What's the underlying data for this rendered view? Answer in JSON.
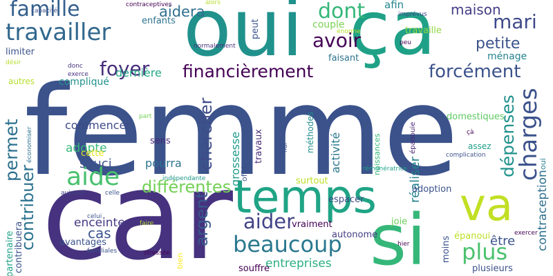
{
  "words": [
    {
      "text": "femme",
      "color": "#3b528b"
    },
    {
      "text": "car",
      "color": "#46327e"
    },
    {
      "text": "oui",
      "color": "#21918c"
    },
    {
      "text": "ça",
      "color": "#1fa187"
    },
    {
      "text": "temps",
      "color": "#20a486"
    },
    {
      "text": "si",
      "color": "#35b779"
    },
    {
      "text": "va",
      "color": "#c2df23"
    },
    {
      "text": "travailler",
      "color": "#31688e"
    },
    {
      "text": "famille",
      "color": "#355f8d"
    },
    {
      "text": "beaucoup",
      "color": "#2a788e"
    },
    {
      "text": "aide",
      "color": "#48c16e"
    },
    {
      "text": "plus",
      "color": "#4ac16d"
    },
    {
      "text": "charges",
      "color": "#3b528b"
    },
    {
      "text": "financièrement",
      "color": "#440154"
    },
    {
      "text": "dont",
      "color": "#35b779"
    },
    {
      "text": "avoir",
      "color": "#440154"
    },
    {
      "text": "forcément",
      "color": "#3b528b"
    },
    {
      "text": "dépenses",
      "color": "#21918c"
    },
    {
      "text": "foyer",
      "color": "#472d7b"
    },
    {
      "text": "aider",
      "color": "#414487"
    },
    {
      "text": "argent",
      "color": "#38598c"
    },
    {
      "text": "différentes",
      "color": "#73d056"
    },
    {
      "text": "contribuer",
      "color": "#2c728e"
    },
    {
      "text": "chercher",
      "color": "#3e4c8a"
    },
    {
      "text": "permet",
      "color": "#2d708e"
    },
    {
      "text": "mari",
      "color": "#3e4989"
    },
    {
      "text": "maison",
      "color": "#433e85"
    },
    {
      "text": "petite",
      "color": "#3b528b"
    },
    {
      "text": "aidera",
      "color": "#2e6f8e"
    },
    {
      "text": "contraception",
      "color": "#2d708e"
    },
    {
      "text": "réaliser",
      "color": "#26828e"
    },
    {
      "text": "entreprises",
      "color": "#29af7f"
    },
    {
      "text": "enceinte",
      "color": "#443983"
    },
    {
      "text": "grossesse",
      "color": "#1f9a8a"
    },
    {
      "text": "activité",
      "color": "#2a788e"
    },
    {
      "text": "cas",
      "color": "#3a548c"
    },
    {
      "text": "être",
      "color": "#3b528b"
    },
    {
      "text": "souci",
      "color": "#3b528b"
    },
    {
      "text": "adopte",
      "color": "#35b779"
    },
    {
      "text": "pourra",
      "color": "#2c738e"
    },
    {
      "text": "ménage",
      "color": "#25838e"
    },
    {
      "text": "dernière",
      "color": "#22a785"
    },
    {
      "text": "peut",
      "color": "#39568c"
    },
    {
      "text": "afin",
      "color": "#24868e"
    },
    {
      "text": "couple",
      "color": "#7ad151"
    },
    {
      "text": "travaille",
      "color": "#90d743"
    },
    {
      "text": "enfants",
      "color": "#2c728e"
    },
    {
      "text": "limiter",
      "color": "#3b528b"
    },
    {
      "text": "faisant",
      "color": "#2c728e"
    },
    {
      "text": "compliqué",
      "color": "#21918c"
    },
    {
      "text": "commencer",
      "color": "#3e4a89"
    },
    {
      "text": "cette",
      "color": "#e7e419"
    },
    {
      "text": "sens",
      "color": "#482878"
    },
    {
      "text": "travaux",
      "color": "#472c7a"
    },
    {
      "text": "offrir",
      "color": "#3b528b"
    },
    {
      "text": "méthodes",
      "color": "#228d8d"
    },
    {
      "text": "naissances",
      "color": "#35b779"
    },
    {
      "text": "épanouie",
      "color": "#482475"
    },
    {
      "text": "domestiques",
      "color": "#5ec962"
    },
    {
      "text": "assez",
      "color": "#1fa088"
    },
    {
      "text": "oui",
      "color": "#27808e"
    },
    {
      "text": "adoption",
      "color": "#3b528b"
    },
    {
      "text": "surtout",
      "color": "#bddf26"
    },
    {
      "text": "espacer",
      "color": "#3e4989"
    },
    {
      "text": "vraiment",
      "color": "#440154"
    },
    {
      "text": "autonome",
      "color": "#433d84"
    },
    {
      "text": "joie",
      "color": "#6ccd5a"
    },
    {
      "text": "épanoui",
      "color": "#bddf26"
    },
    {
      "text": "moins",
      "color": "#3b528b"
    },
    {
      "text": "plusieurs",
      "color": "#3b528b"
    },
    {
      "text": "souffre",
      "color": "#440154"
    },
    {
      "text": "bien",
      "color": "#fde725"
    },
    {
      "text": "avantages",
      "color": "#3b528b"
    },
    {
      "text": "partenaire",
      "color": "#1fa088"
    },
    {
      "text": "contribuera",
      "color": "#3b528b"
    },
    {
      "text": "économiser",
      "color": "#2c728e"
    },
    {
      "text": "indépendante",
      "color": "#1f968b"
    },
    {
      "text": "autres",
      "color": "#b5de2b"
    },
    {
      "text": "désir",
      "color": "#b5de2b"
    },
    {
      "text": "capacité",
      "color": "#3b528b"
    },
    {
      "text": "contraceptives",
      "color": "#440154"
    },
    {
      "text": "alors",
      "color": "#b5de2b"
    },
    {
      "text": "normalement",
      "color": "#472f7d"
    },
    {
      "text": "donc",
      "color": "#46337f"
    },
    {
      "text": "exerce",
      "color": "#46327e"
    },
    {
      "text": "part",
      "color": "#73d056"
    },
    {
      "text": "aujourd",
      "color": "#414487"
    },
    {
      "text": "celle",
      "color": "#3b528b"
    },
    {
      "text": "familiales",
      "color": "#3b528b"
    },
    {
      "text": "stressée",
      "color": "#440154"
    },
    {
      "text": "faire",
      "color": "#b5de2b"
    },
    {
      "text": "celui",
      "color": "#3b528b"
    },
    {
      "text": "hui",
      "color": "#3b528b"
    },
    {
      "text": "complication",
      "color": "#3b528b"
    },
    {
      "text": "rémunératrice",
      "color": "#1fa088"
    },
    {
      "text": "hier",
      "color": "#440154"
    },
    {
      "text": "exercer",
      "color": "#440154"
    },
    {
      "text": "énorme",
      "color": "#b5de2b"
    },
    {
      "text": "peu",
      "color": "#440154"
    },
    {
      "text": "imprévus",
      "color": "#3e4989"
    },
    {
      "text": "çà",
      "color": "#440154"
    },
    {
      "text": "ça",
      "color": "#2c728e"
    }
  ]
}
